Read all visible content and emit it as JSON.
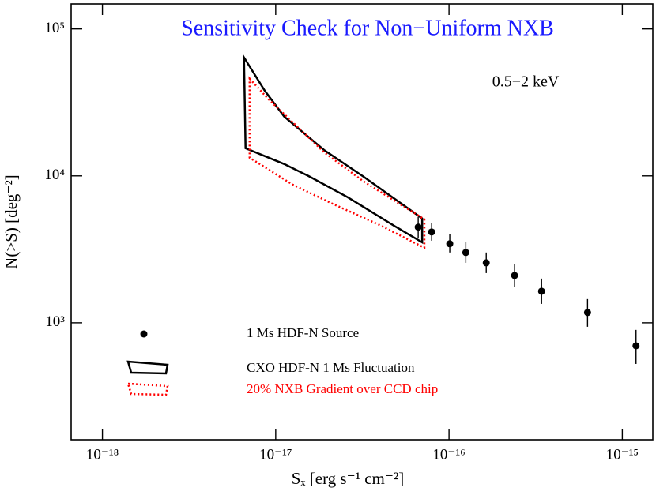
{
  "chart_data": {
    "type": "scatter",
    "title": "Sensitivity Check for Non−Uniform NXB",
    "title_color": "#1a1aff",
    "annotation": "0.5−2 keV",
    "xlabel": "Sₓ  [erg s⁻¹ cm⁻²]",
    "ylabel": "N(>S) [deg⁻²]",
    "xscale": "log",
    "yscale": "log",
    "xlim": [
      6.6e-19,
      1.5e-15
    ],
    "ylim": [
      160,
      148000
    ],
    "xticks": [
      {
        "value": 1e-18,
        "label": "10⁻¹⁸"
      },
      {
        "value": 1e-17,
        "label": "10⁻¹⁷"
      },
      {
        "value": 1e-16,
        "label": "10⁻¹⁶"
      },
      {
        "value": 1e-15,
        "label": "10⁻¹⁵"
      }
    ],
    "yticks": [
      {
        "value": 1000,
        "label": "10³"
      },
      {
        "value": 10000,
        "label": "10⁴"
      },
      {
        "value": 100000,
        "label": "10⁵"
      }
    ],
    "series": [
      {
        "name": "1 Ms HDF-N Source",
        "color": "#000000",
        "x": [
          6.64e-17,
          7.94e-17,
          1.01e-16,
          1.25e-16,
          1.64e-16,
          2.39e-16,
          3.42e-16,
          6.3e-16,
          1.2e-15
        ],
        "values": [
          4480,
          4150,
          3450,
          3010,
          2560,
          2100,
          1640,
          1175,
          698
        ],
        "lower": [
          3760,
          3620,
          3010,
          2560,
          2180,
          1750,
          1345,
          940,
          525
        ],
        "upper": [
          5250,
          4750,
          4000,
          3530,
          3010,
          2500,
          2000,
          1450,
          895
        ]
      }
    ],
    "regions": [
      {
        "name": "CXO HDF-N 1 Ms Fluctuation",
        "color": "#000000",
        "style": "solid",
        "x": [
          6.56e-18,
          8.63e-18,
          1.12e-17,
          1.9e-17,
          3.21e-17,
          7e-17,
          7e-17,
          4.89e-17,
          2.6e-17,
          1.54e-17,
          1.12e-17,
          6.7e-18
        ],
        "values": [
          64000,
          38100,
          25300,
          15000,
          9880,
          5130,
          3530,
          4530,
          7160,
          10000,
          12040,
          15420
        ]
      },
      {
        "name": "20% NXB Gradient over CCD chip",
        "color": "#ff0000",
        "style": "dotted",
        "x": [
          7.07e-18,
          9.1e-18,
          1.9e-17,
          3.21e-17,
          7.21e-17,
          7.21e-17,
          3.96e-17,
          2.11e-17,
          1.25e-17,
          7.07e-18
        ],
        "values": [
          45900,
          33200,
          14500,
          9170,
          5060,
          3240,
          4640,
          6490,
          8730,
          13300
        ]
      }
    ]
  }
}
